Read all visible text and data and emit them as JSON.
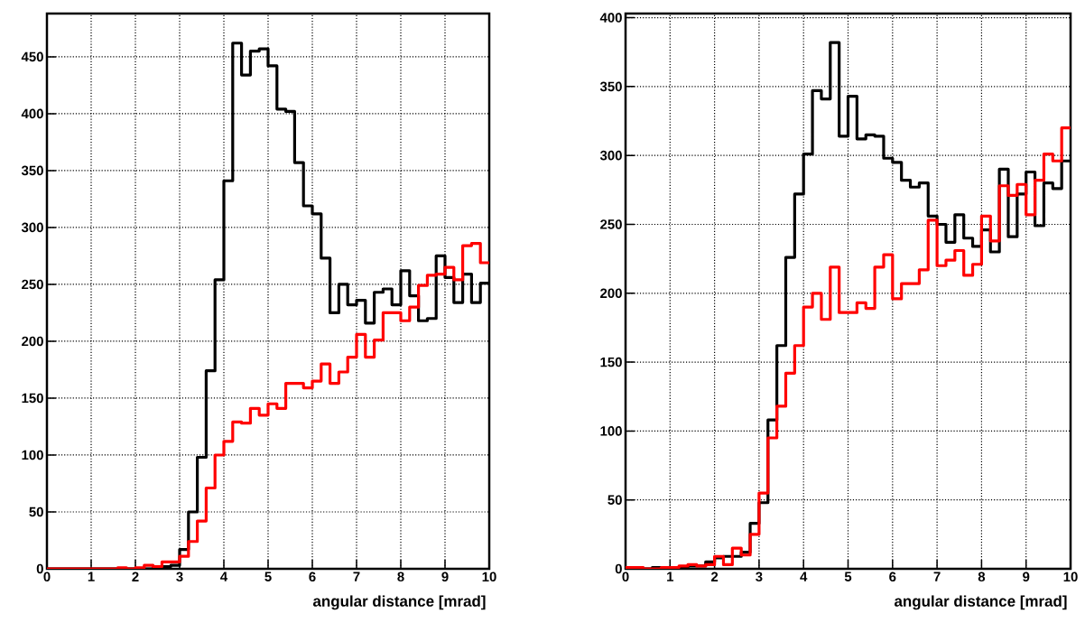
{
  "chart_data": [
    {
      "type": "histogram",
      "xlabel": "angular distance [mrad]",
      "bins": [
        0,
        0.2,
        0.4,
        0.6,
        0.8,
        1,
        1.2,
        1.4,
        1.6,
        1.8,
        2,
        2.2,
        2.4,
        2.6,
        2.8,
        3,
        3.2,
        3.4,
        3.6,
        3.8,
        4,
        4.2,
        4.4,
        4.6,
        4.8,
        5,
        5.2,
        5.4,
        5.6,
        5.8,
        6,
        6.2,
        6.4,
        6.6,
        6.8,
        7,
        7.2,
        7.4,
        7.6,
        7.8,
        8,
        8.2,
        8.4,
        8.6,
        8.8,
        9,
        9.2,
        9.4,
        9.6,
        9.8,
        10
      ],
      "series": [
        {
          "color": "#000000",
          "values": [
            0,
            0,
            0,
            0,
            0,
            0,
            0,
            0,
            0,
            0,
            0,
            0,
            1,
            2,
            3,
            17,
            50,
            98,
            174,
            254,
            341,
            462,
            434,
            455,
            457,
            442,
            404,
            402,
            357,
            319,
            312,
            273,
            225,
            250,
            232,
            236,
            216,
            243,
            246,
            232,
            262,
            240,
            218,
            220,
            275,
            256,
            234,
            259,
            234,
            251
          ]
        },
        {
          "color": "#ff0000",
          "values": [
            0,
            0,
            0,
            0,
            0,
            0,
            0,
            0,
            1,
            0,
            1,
            3,
            2,
            6,
            6,
            11,
            24,
            42,
            71,
            100,
            112,
            129,
            128,
            141,
            135,
            145,
            141,
            163,
            163,
            159,
            165,
            180,
            163,
            173,
            186,
            206,
            186,
            201,
            225,
            225,
            218,
            230,
            249,
            258,
            259,
            265,
            254,
            284,
            286,
            269
          ]
        }
      ],
      "xlim": [
        0,
        10
      ],
      "ylim": [
        0,
        488
      ],
      "xticks": [
        0,
        1,
        2,
        3,
        4,
        5,
        6,
        7,
        8,
        9,
        10
      ],
      "yticks": [
        0,
        50,
        100,
        150,
        200,
        250,
        300,
        350,
        400,
        450
      ],
      "grid": true
    },
    {
      "type": "histogram",
      "xlabel": "angular distance [mrad]",
      "bins": [
        0,
        0.2,
        0.4,
        0.6,
        0.8,
        1,
        1.2,
        1.4,
        1.6,
        1.8,
        2,
        2.2,
        2.4,
        2.6,
        2.8,
        3,
        3.2,
        3.4,
        3.6,
        3.8,
        4,
        4.2,
        4.4,
        4.6,
        4.8,
        5,
        5.2,
        5.4,
        5.6,
        5.8,
        6,
        6.2,
        6.4,
        6.6,
        6.8,
        7,
        7.2,
        7.4,
        7.6,
        7.8,
        8,
        8.2,
        8.4,
        8.6,
        8.8,
        9,
        9.2,
        9.4,
        9.6,
        9.8,
        10
      ],
      "series": [
        {
          "color": "#000000",
          "values": [
            0,
            0,
            0,
            1,
            1,
            1,
            1,
            2,
            2,
            5,
            8,
            9,
            9,
            12,
            33,
            48,
            108,
            162,
            226,
            272,
            301,
            347,
            341,
            382,
            314,
            343,
            312,
            315,
            314,
            298,
            295,
            282,
            277,
            280,
            256,
            250,
            237,
            257,
            240,
            234,
            246,
            230,
            290,
            241,
            272,
            288,
            249,
            280,
            276,
            296
          ]
        },
        {
          "color": "#ff0000",
          "values": [
            1,
            1,
            0,
            0,
            1,
            1,
            2,
            3,
            2,
            3,
            9,
            3,
            15,
            10,
            25,
            55,
            95,
            118,
            142,
            162,
            190,
            200,
            181,
            219,
            186,
            186,
            193,
            189,
            219,
            228,
            196,
            207,
            207,
            217,
            253,
            220,
            224,
            231,
            213,
            221,
            256,
            238,
            278,
            271,
            279,
            257,
            282,
            301,
            296,
            320
          ]
        }
      ],
      "xlim": [
        0,
        10
      ],
      "ylim": [
        0,
        403
      ],
      "xticks": [
        0,
        1,
        2,
        3,
        4,
        5,
        6,
        7,
        8,
        9,
        10
      ],
      "yticks": [
        0,
        50,
        100,
        150,
        200,
        250,
        300,
        350,
        400
      ],
      "grid": true
    }
  ]
}
